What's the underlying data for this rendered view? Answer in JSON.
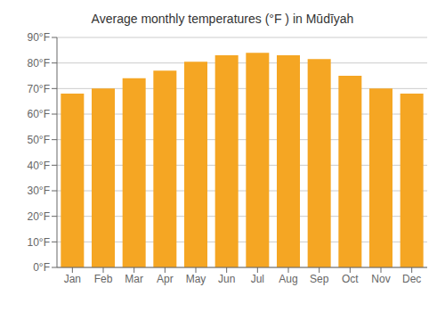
{
  "chart_data": {
    "type": "bar",
    "title": "Average monthly temperatures (°F ) in Mūdīyah",
    "categories": [
      "Jan",
      "Feb",
      "Mar",
      "Apr",
      "May",
      "Jun",
      "Jul",
      "Aug",
      "Sep",
      "Oct",
      "Nov",
      "Dec"
    ],
    "values": [
      68,
      70,
      74,
      77,
      80.5,
      83,
      84,
      83,
      81.5,
      75,
      70,
      68
    ],
    "color": "#F5A623",
    "ylim": [
      0,
      90
    ],
    "yticks": [
      {
        "value": 0,
        "label": "0°F"
      },
      {
        "value": 10,
        "label": "10°F"
      },
      {
        "value": 20,
        "label": "20°F"
      },
      {
        "value": 30,
        "label": "30°F"
      },
      {
        "value": 40,
        "label": "40°F"
      },
      {
        "value": 50,
        "label": "50°F"
      },
      {
        "value": 60,
        "label": "60°F"
      },
      {
        "value": 70,
        "label": "70°F"
      },
      {
        "value": 80,
        "label": "80°F"
      },
      {
        "value": 90,
        "label": "90°F"
      }
    ],
    "grid": true
  }
}
